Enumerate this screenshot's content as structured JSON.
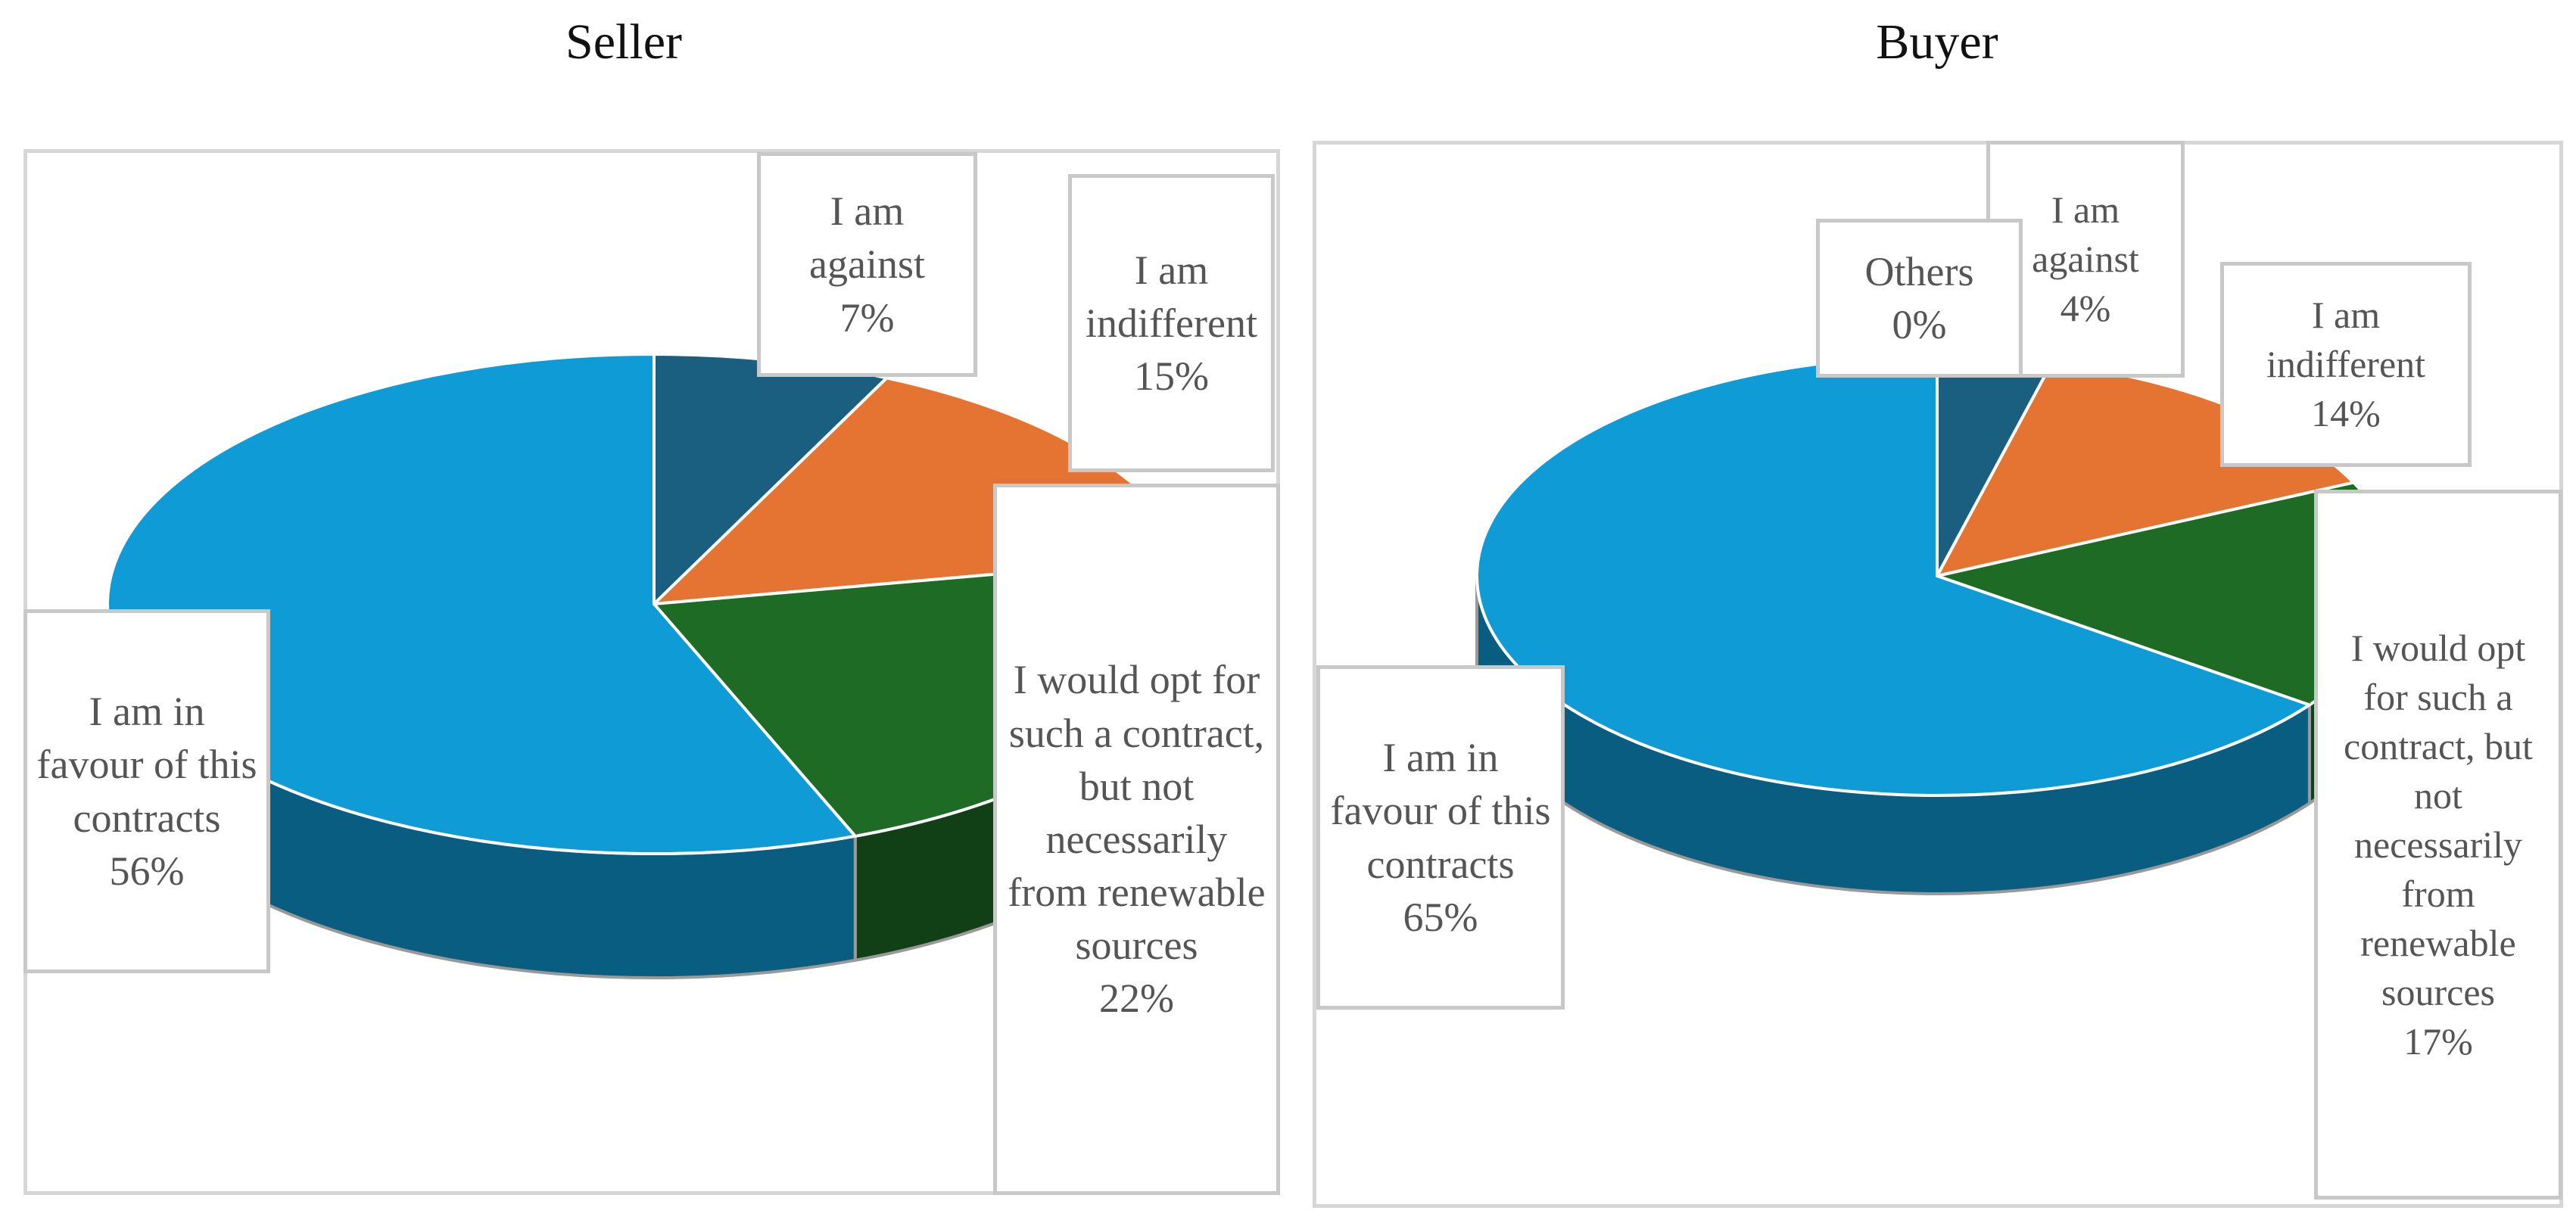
{
  "chart_data": [
    {
      "type": "pie",
      "title": "Seller",
      "categories": [
        "I am against",
        "I am indifferent",
        "I would opt for such a contract, but not necessarily from renewable sources",
        "I am in favour of this contracts"
      ],
      "values": [
        7,
        15,
        22,
        56
      ],
      "value_labels": [
        "7%",
        "15%",
        "22%",
        "56%"
      ],
      "colors": [
        "#1a5e80",
        "#e57332",
        "#1d6b24",
        "#0f9bd6"
      ]
    },
    {
      "type": "pie",
      "title": "Buyer",
      "categories": [
        "I am against",
        "I am indifferent",
        "I would opt for such a contract, but not necessarily from renewable sources",
        "I am in favour of this contracts",
        "Others"
      ],
      "values": [
        4,
        14,
        17,
        65,
        0
      ],
      "value_labels": [
        "4%",
        "14%",
        "17%",
        "65%",
        "0%"
      ],
      "colors": [
        "#1a5e80",
        "#e57332",
        "#1d6b24",
        "#0f9bd6",
        "#9b2fae"
      ]
    }
  ]
}
